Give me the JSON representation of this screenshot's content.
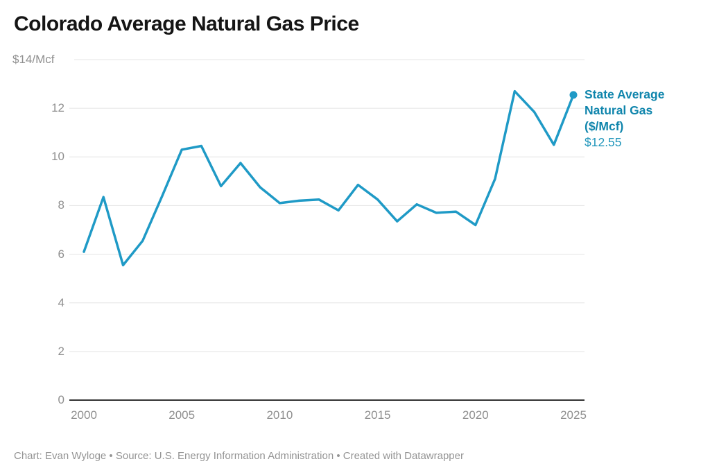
{
  "title": "Colorado Average Natural Gas Price",
  "footer": "Chart: Evan Wyloge • Source: U.S. Energy Information Administration • Created with Datawrapper",
  "annotation": {
    "line1": "State Average",
    "line2": "Natural Gas",
    "line3": "($/Mcf)",
    "value": "$12.55"
  },
  "colors": {
    "line": "#1f9ac6",
    "end_dot": "#1f9ac6",
    "annotation_label": "#0f85ac",
    "annotation_value": "#2196bb",
    "grid": "#e4e4e4",
    "axis": "#333333",
    "tick_text": "#8f8f8f",
    "title_text": "#151515",
    "footer_text": "#949494"
  },
  "chart_data": {
    "type": "line",
    "title": "Colorado Average Natural Gas Price",
    "x": [
      2000,
      2001,
      2002,
      2003,
      2004,
      2005,
      2006,
      2007,
      2008,
      2009,
      2010,
      2011,
      2012,
      2013,
      2014,
      2015,
      2016,
      2017,
      2018,
      2019,
      2020,
      2021,
      2022,
      2023,
      2024,
      2025
    ],
    "series": [
      {
        "name": "State Average Natural Gas ($/Mcf)",
        "values": [
          6.1,
          8.35,
          5.55,
          6.55,
          8.4,
          10.3,
          10.45,
          8.8,
          9.75,
          8.75,
          8.1,
          8.2,
          8.25,
          7.8,
          8.85,
          8.25,
          7.35,
          8.05,
          7.7,
          7.75,
          7.2,
          9.1,
          12.7,
          11.85,
          10.5,
          12.55
        ]
      }
    ],
    "end_label_value": 12.55,
    "xlabel": "",
    "ylabel": "",
    "ylim": [
      0,
      14
    ],
    "xlim": [
      2000,
      2025
    ],
    "grid": "horizontal",
    "legend_position": "right-of-last-point",
    "y_ticks": [
      0,
      2,
      4,
      6,
      8,
      10,
      12,
      14
    ],
    "y_tick_labels": [
      "0",
      "2",
      "4",
      "6",
      "8",
      "10",
      "12",
      "$14/Mcf"
    ],
    "x_ticks": [
      2000,
      2005,
      2010,
      2015,
      2020,
      2025
    ],
    "x_tick_labels": [
      "2000",
      "2005",
      "2010",
      "2015",
      "2020",
      "2025"
    ]
  }
}
